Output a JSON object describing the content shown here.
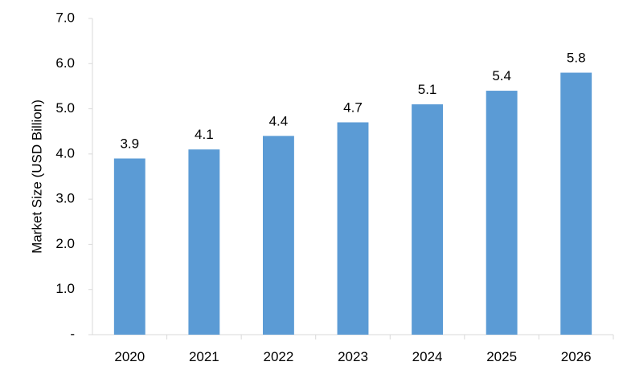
{
  "chart_data": {
    "type": "bar",
    "categories": [
      "2020",
      "2021",
      "2022",
      "2023",
      "2024",
      "2025",
      "2026"
    ],
    "values": [
      3.9,
      4.1,
      4.4,
      4.7,
      5.1,
      5.4,
      5.8
    ],
    "data_labels": [
      "3.9",
      "4.1",
      "4.4",
      "4.7",
      "5.1",
      "5.4",
      "5.8"
    ],
    "title": "",
    "xlabel": "",
    "ylabel": "Market Size (USD Billion)",
    "ylim": [
      0,
      7
    ],
    "yticks": [
      0,
      1,
      2,
      3,
      4,
      5,
      6,
      7
    ],
    "ytick_labels": [
      "-",
      "1.0",
      "2.0",
      "3.0",
      "4.0",
      "5.0",
      "6.0",
      "7.0"
    ],
    "grid": false,
    "legend": "none",
    "bar_color": "#5b9bd5",
    "axis_color": "#d9d9d9"
  }
}
